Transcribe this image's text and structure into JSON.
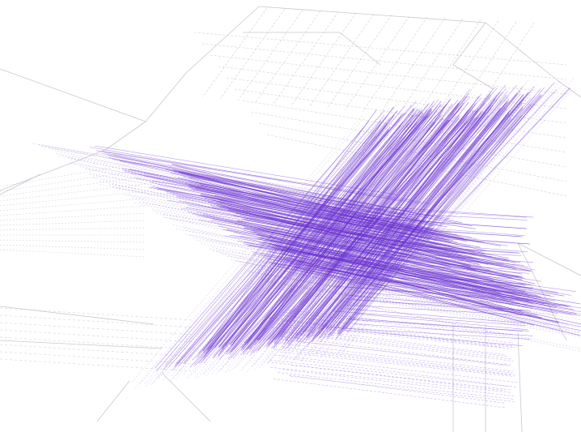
{
  "scene": {
    "kind": "3d-wireframe-mesh",
    "colors": {
      "background": "#ffffff",
      "wire_dense": "#6a2fd0",
      "wire_mid": "#8c5be0",
      "wire_faint": "#b9a8d8",
      "wire_gray": "#c4c0cc"
    }
  }
}
